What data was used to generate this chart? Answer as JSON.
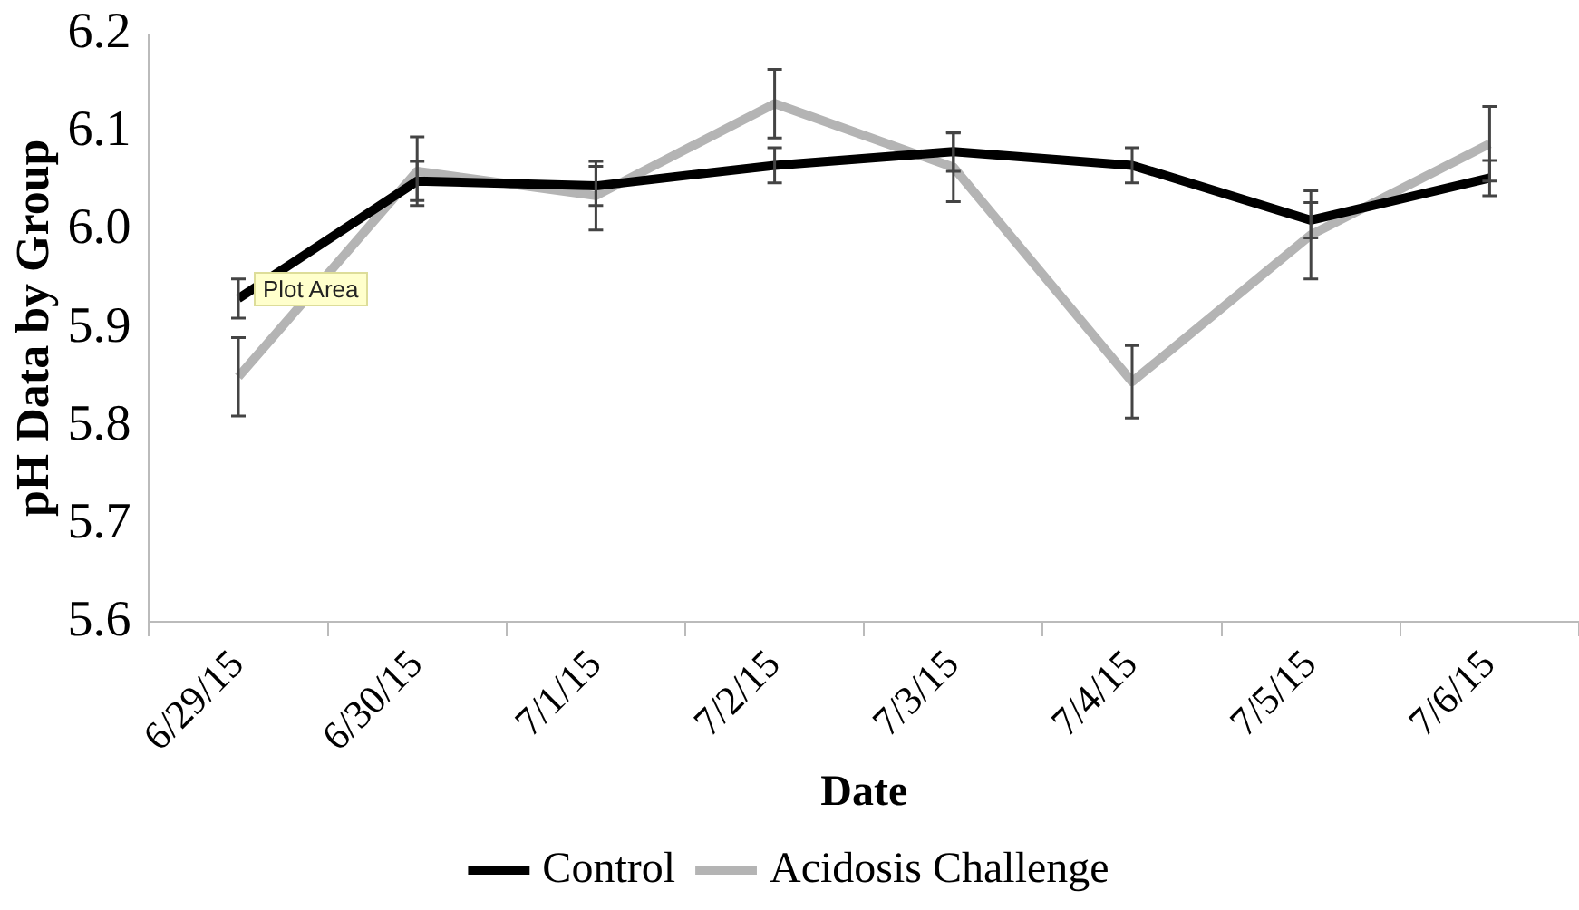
{
  "chart_data": {
    "type": "line",
    "xlabel": "Date",
    "ylabel": "pH Data by Group",
    "categories": [
      "6/29/15",
      "6/30/15",
      "7/1/15",
      "7/2/15",
      "7/3/15",
      "7/4/15",
      "7/5/15",
      "7/6/15"
    ],
    "series": [
      {
        "name": "Control",
        "color": "#000000",
        "values": [
          5.93,
          6.05,
          6.045,
          6.066,
          6.08,
          6.066,
          6.01,
          6.053
        ],
        "errors": [
          0.02,
          0.02,
          0.02,
          0.018,
          0.02,
          0.018,
          0.018,
          0.018
        ]
      },
      {
        "name": "Acidosis Challenge",
        "color": "#b4b4b4",
        "values": [
          5.85,
          6.06,
          6.035,
          6.129,
          6.064,
          5.845,
          5.995,
          6.088
        ],
        "errors": [
          0.04,
          0.035,
          0.035,
          0.035,
          0.035,
          0.037,
          0.045,
          0.038
        ]
      }
    ],
    "ylim": [
      5.6,
      6.2
    ],
    "yticks": [
      {
        "value": 5.6,
        "label": "5.6"
      },
      {
        "value": 5.7,
        "label": "5.7"
      },
      {
        "value": 5.8,
        "label": "5.8"
      },
      {
        "value": 5.9,
        "label": "5.9"
      },
      {
        "value": 6.0,
        "label": "6.0"
      },
      {
        "value": 6.1,
        "label": "6.1"
      },
      {
        "value": 6.2,
        "label": "6.2"
      }
    ],
    "legend": "bottom",
    "marker": "none",
    "line_style": "solid",
    "annotations": [
      "Plot Area"
    ]
  }
}
